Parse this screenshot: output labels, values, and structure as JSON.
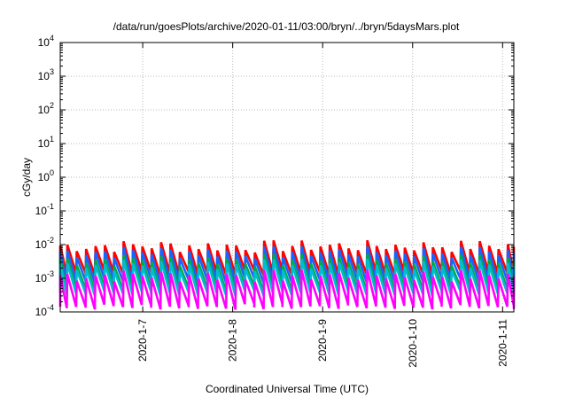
{
  "chart_data": {
    "type": "line",
    "title": "/data/run/goesPlots/archive/2020-01-11/03:00/bryn/../bryn/5daysMars.plot",
    "xlabel": "Coordinated Universal Time (UTC)",
    "ylabel": "cGy/day",
    "yscale": "log",
    "ylim": [
      0.0001,
      10000
    ],
    "xlim": [
      "2020-01-06T02:00",
      "2020-01-11T03:00"
    ],
    "y_ticks": [
      {
        "exp": "-4"
      },
      {
        "exp": "-3"
      },
      {
        "exp": "-2"
      },
      {
        "exp": "-1"
      },
      {
        "exp": "0"
      },
      {
        "exp": "1"
      },
      {
        "exp": "2"
      },
      {
        "exp": "3"
      },
      {
        "exp": "4"
      }
    ],
    "x_ticks": [
      "2020-1-7",
      "2020-1-8",
      "2020-1-9",
      "2020-1-10",
      "2020-1-11"
    ],
    "grid": true,
    "legend": "none",
    "pattern": {
      "period_hours": 2.5,
      "note": "sawtooth: values rise sharply to a peak, then decay over ~2.5 h"
    },
    "series": [
      {
        "color": "#ff0000",
        "peak": 0.009,
        "trough": 0.0012
      },
      {
        "color": "#1565ff",
        "peak": 0.006,
        "trough": 0.0007
      },
      {
        "color": "#00aa44",
        "peak": 0.0035,
        "trough": 0.0004
      },
      {
        "color": "#00bcd4",
        "peak": 0.0025,
        "trough": 0.0003
      },
      {
        "color": "#ff00ff",
        "peak": 0.0012,
        "trough": 0.00012
      }
    ]
  }
}
